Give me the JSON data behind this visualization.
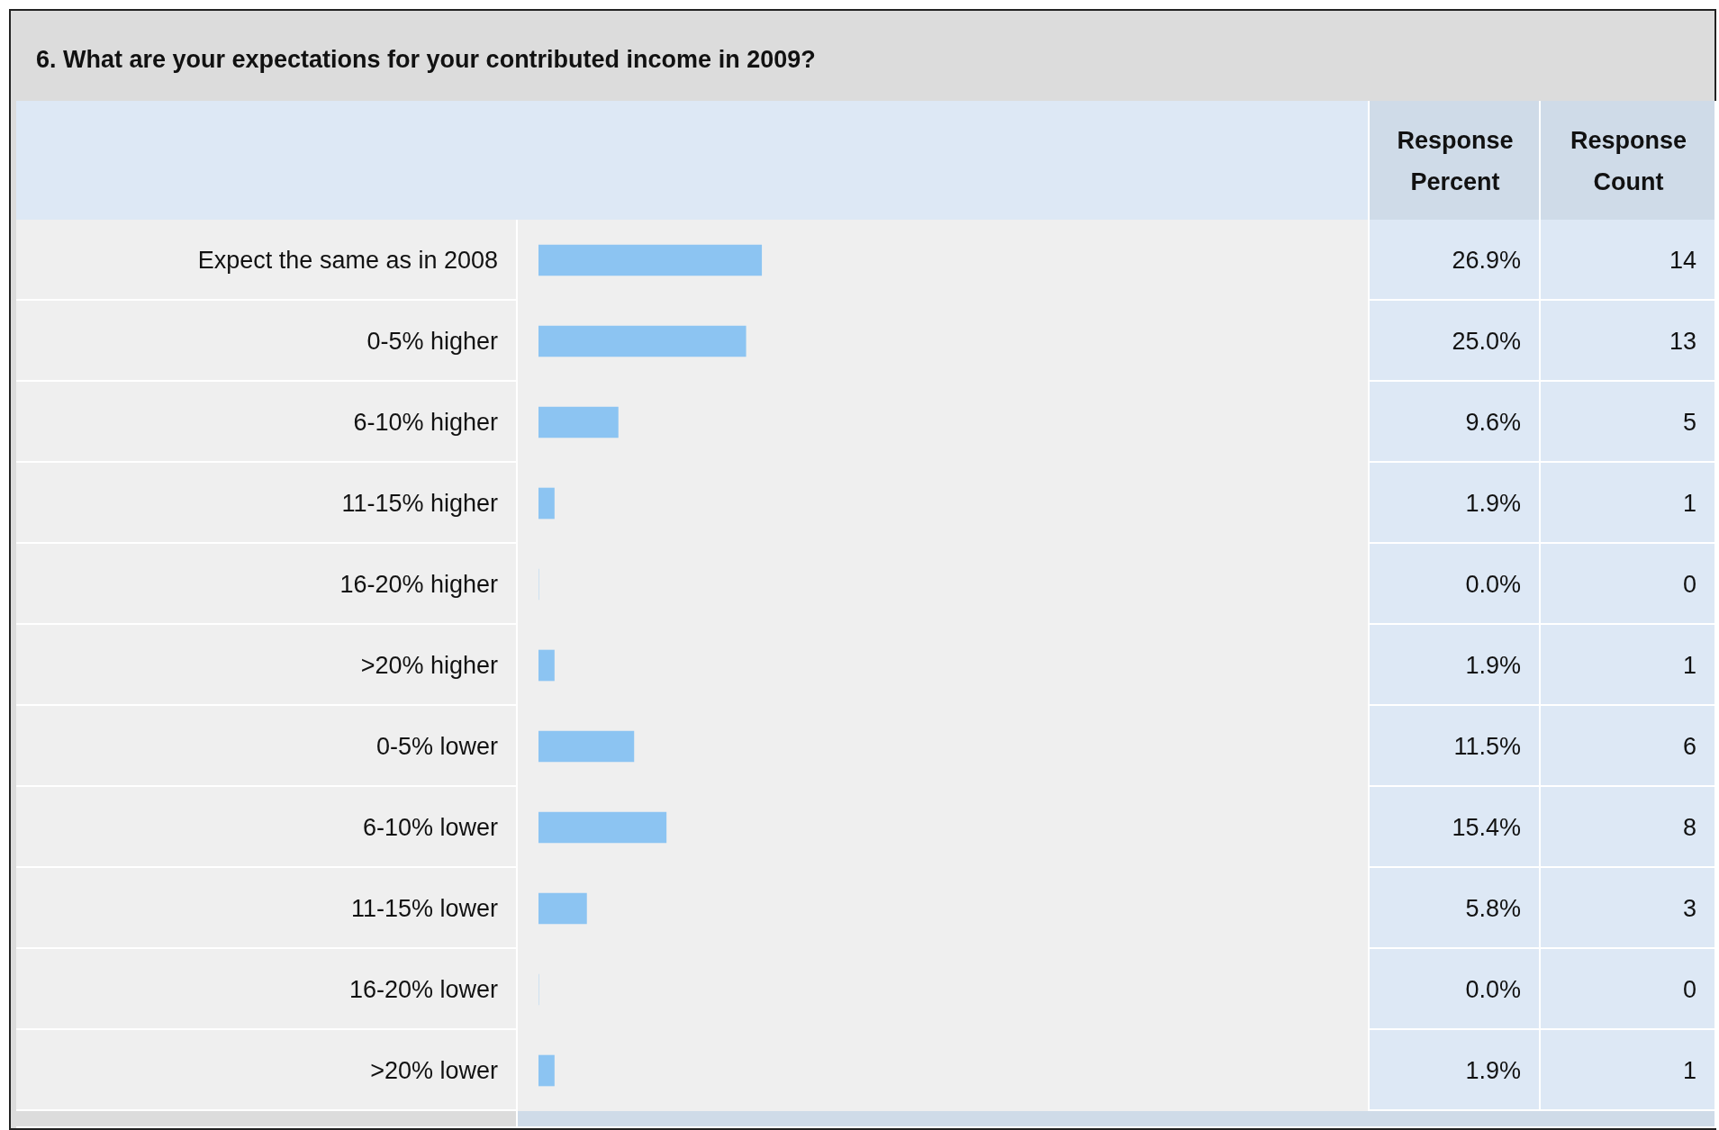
{
  "chart_data": {
    "type": "bar",
    "orientation": "horizontal",
    "title": "6. What are your expectations for your contributed income in 2009?",
    "categories": [
      "Expect the same as in 2008",
      "0-5% higher",
      "6-10% higher",
      "11-15% higher",
      "16-20% higher",
      ">20% higher",
      "0-5% lower",
      "6-10% lower",
      "11-15% lower",
      "16-20% lower",
      ">20% lower"
    ],
    "series": [
      {
        "name": "Response Percent",
        "color": "#8cc4f2",
        "values": [
          26.9,
          25.0,
          9.6,
          1.9,
          0.0,
          1.9,
          11.5,
          15.4,
          5.8,
          0.0,
          1.9
        ],
        "value_labels": [
          "26.9%",
          "25.0%",
          "9.6%",
          "1.9%",
          "0.0%",
          "1.9%",
          "11.5%",
          "15.4%",
          "5.8%",
          "0.0%",
          "1.9%"
        ]
      }
    ],
    "annotations": [
      "Response Count",
      "14",
      "13",
      "5",
      "1",
      "0",
      "1",
      "6",
      "8",
      "3",
      "0",
      "1"
    ],
    "xlim": [
      0,
      100
    ],
    "tick_labels": false,
    "grid": false,
    "legend": false,
    "data_labels": true
  }
}
